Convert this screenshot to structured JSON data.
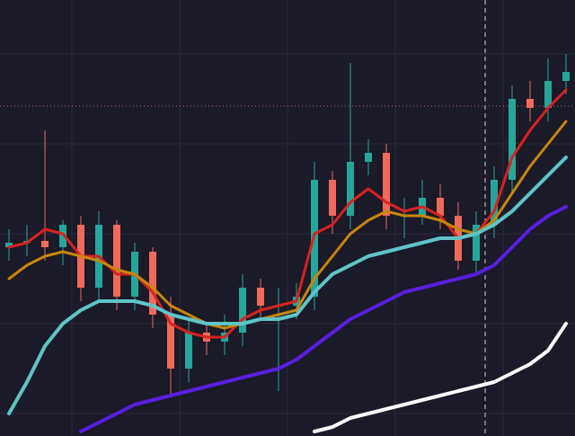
{
  "chart_data": {
    "type": "candlestick",
    "ylim": [
      0,
      97
    ],
    "up_color": "#26a69a",
    "down_color": "#ef6a5a",
    "open": [
      42,
      43,
      43.4,
      42,
      47,
      33,
      47,
      31,
      41,
      27,
      15,
      23,
      21,
      23,
      33,
      29,
      29,
      31,
      57,
      49,
      61,
      63,
      49,
      49,
      53,
      49,
      39,
      47,
      57,
      75,
      73,
      79
    ],
    "high": [
      46,
      47,
      68,
      48,
      49,
      50,
      48,
      43,
      42,
      31,
      26,
      25,
      27,
      36,
      35,
      33,
      34,
      61,
      59,
      83,
      66,
      65,
      53,
      57,
      56,
      52,
      50,
      60,
      78,
      79,
      84,
      85
    ],
    "low": [
      39,
      40,
      39,
      38,
      30,
      30,
      28,
      28,
      24,
      9,
      12,
      18,
      18,
      20,
      26,
      10,
      26,
      28,
      45,
      46,
      58,
      46,
      44,
      47,
      46,
      37,
      36,
      44,
      54,
      70,
      70,
      76
    ],
    "close": [
      43,
      43.4,
      42,
      47,
      33,
      47,
      31,
      41,
      27,
      15,
      23,
      21,
      23,
      33,
      29,
      29,
      31,
      57,
      49,
      61,
      63,
      49,
      49,
      53,
      49,
      39,
      47,
      57,
      75,
      73,
      79,
      81
    ],
    "price_line": {
      "value": 73.4,
      "color": "#c8705a"
    },
    "series": [
      {
        "color": "#d8221e",
        "values": [
          42,
          43,
          46,
          45,
          40,
          40,
          36,
          36,
          32,
          25,
          23,
          22,
          22,
          26,
          28,
          29,
          30,
          45,
          47,
          52,
          55,
          52,
          50,
          51,
          49,
          44,
          45,
          50,
          62,
          68,
          73,
          77
        ]
      },
      {
        "color": "#c8860a",
        "values": [
          35,
          38,
          40,
          41,
          40,
          39,
          37,
          36,
          33,
          29,
          27,
          25,
          24,
          25,
          26,
          27,
          28,
          35,
          40,
          45,
          48,
          50,
          49,
          49,
          48,
          46,
          45,
          48,
          54,
          60,
          65,
          70
        ]
      },
      {
        "color": "#5fc4c8",
        "values": [
          5,
          12,
          20,
          25,
          28,
          30,
          30,
          30,
          29,
          27,
          26,
          25,
          25,
          25,
          26,
          26,
          27,
          32,
          36,
          38,
          40,
          41,
          42,
          43,
          44,
          44,
          45,
          47,
          50,
          54,
          58,
          62
        ]
      },
      {
        "color": "#5a1fe0",
        "values": [
          null,
          null,
          null,
          null,
          1,
          3,
          5,
          7,
          8,
          9,
          10,
          11,
          12,
          13,
          14,
          15,
          17,
          20,
          23,
          26,
          28,
          30,
          32,
          33,
          34,
          35,
          36,
          38,
          42,
          46,
          49,
          51
        ]
      },
      {
        "color": "#ffffff",
        "values": [
          null,
          null,
          null,
          null,
          null,
          null,
          null,
          null,
          null,
          null,
          null,
          null,
          null,
          null,
          null,
          null,
          null,
          1,
          2,
          4,
          5,
          6,
          7,
          8,
          9,
          10,
          11,
          12,
          14,
          16,
          19,
          25
        ]
      }
    ]
  }
}
